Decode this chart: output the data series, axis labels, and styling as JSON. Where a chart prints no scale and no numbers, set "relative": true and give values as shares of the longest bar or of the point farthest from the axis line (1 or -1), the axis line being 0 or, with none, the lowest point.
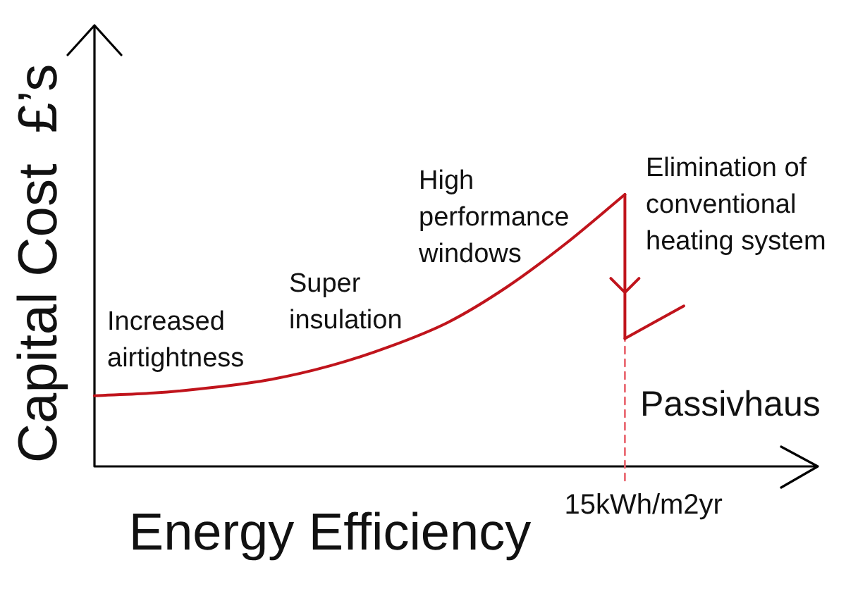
{
  "chart_data": {
    "type": "line",
    "xlabel": "Energy Efficiency",
    "ylabel": "Capital Cost  £’s",
    "relative": true,
    "categories": [
      null,
      null,
      null,
      null,
      null,
      null,
      null,
      null,
      null,
      null,
      null
    ],
    "series": [
      {
        "color": "#c0141c",
        "values": [
          0.26,
          0.27,
          0.29,
          0.32,
          0.37,
          0.44,
          0.53,
          0.66,
          0.82,
          1,
          null
        ]
      },
      {
        "color": "#c0141c",
        "values": [
          null,
          null,
          null,
          null,
          null,
          null,
          null,
          null,
          null,
          0.47,
          0.59
        ]
      }
    ],
    "ref_lines": [
      {
        "axis": "x",
        "value": "15kWh/m2yr",
        "color": "#e8606a",
        "line_style": "dashed"
      }
    ],
    "annotations": [
      "Increased airtightness",
      "Super insulation",
      "High performance windows",
      "Elimination of conventional heating system",
      "Passivhaus"
    ],
    "legend": false
  }
}
